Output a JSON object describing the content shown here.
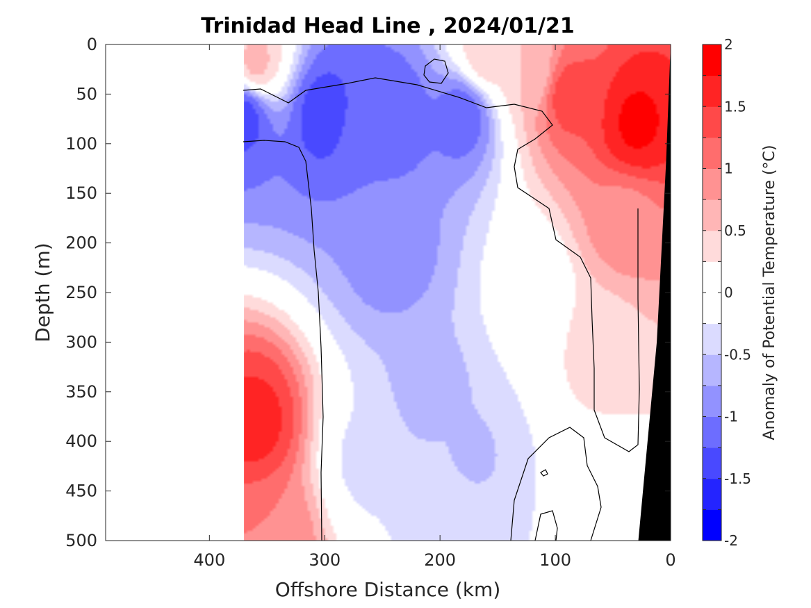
{
  "chart_data": {
    "type": "heatmap",
    "title": "Trinidad Head Line , 2024/01/21",
    "xlabel": "Offshore Distance (km)",
    "ylabel": "Depth (m)",
    "xlim": [
      490,
      0
    ],
    "x_reversed": true,
    "ylim": [
      0,
      500
    ],
    "y_reversed": true,
    "x_ticks": [
      400,
      300,
      200,
      100,
      0
    ],
    "y_ticks": [
      0,
      50,
      100,
      150,
      200,
      250,
      300,
      350,
      400,
      450,
      500
    ],
    "colorbar": {
      "label": "Anomaly of Potential Temperature (°C)",
      "range": [
        -2,
        2
      ],
      "step": 0.25,
      "ticks": [
        -2,
        -1.5,
        -1,
        -0.5,
        0,
        0.5,
        1,
        1.5,
        2
      ],
      "neg_color": "#0000ff",
      "pos_color": "#ff0000",
      "mid_color": "#ffffff"
    },
    "data_extent_km": 370,
    "bathymetry_color": "#000000",
    "features": [
      {
        "x": 360,
        "y": 380,
        "value": 1.6
      },
      {
        "x": 345,
        "y": 500,
        "value": 1.0
      },
      {
        "x": 360,
        "y": 20,
        "value": 0.6
      },
      {
        "x": 370,
        "y": 70,
        "value": -1.4
      },
      {
        "x": 300,
        "y": 70,
        "value": -1.4
      },
      {
        "x": 240,
        "y": 70,
        "value": -1.2
      },
      {
        "x": 180,
        "y": 70,
        "value": -1.2
      },
      {
        "x": 260,
        "y": 90,
        "value": -1.0
      },
      {
        "x": 240,
        "y": 210,
        "value": -0.9
      },
      {
        "x": 210,
        "y": 350,
        "value": -0.6
      },
      {
        "x": 175,
        "y": 420,
        "value": -0.55
      },
      {
        "x": 265,
        "y": 420,
        "value": -0.3
      },
      {
        "x": 190,
        "y": 460,
        "value": -0.3
      },
      {
        "x": 90,
        "y": 50,
        "value": 1.4
      },
      {
        "x": 30,
        "y": 80,
        "value": 1.8
      },
      {
        "x": 40,
        "y": 180,
        "value": 0.9
      },
      {
        "x": 60,
        "y": 300,
        "value": 0.4
      },
      {
        "x": 120,
        "y": 30,
        "value": 0.5
      },
      {
        "x": 160,
        "y": 10,
        "value": 0.5
      },
      {
        "x": 60,
        "y": 480,
        "value": -0.1
      },
      {
        "x": 120,
        "y": 250,
        "value": -0.1
      }
    ]
  }
}
